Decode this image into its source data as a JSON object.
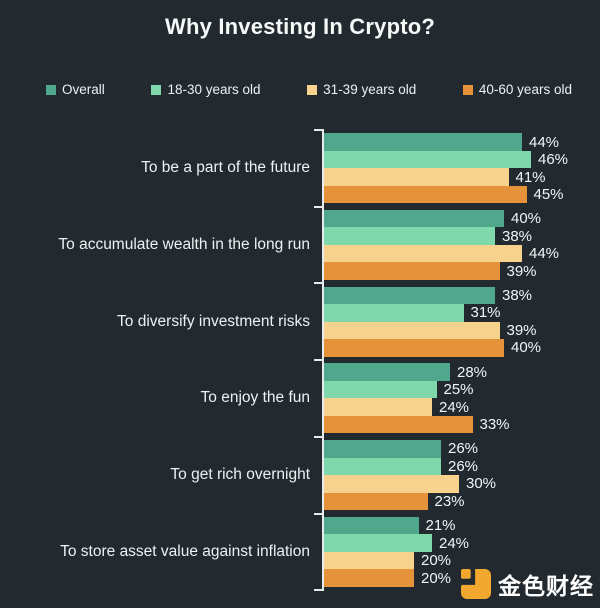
{
  "title": "Why Investing In Crypto?",
  "chart_data": {
    "type": "bar",
    "orientation": "horizontal",
    "title": "Why Investing In Crypto?",
    "categories": [
      "To be a part of the future",
      "To accumulate wealth in the long run",
      "To diversify investment risks",
      "To enjoy the fun",
      "To get rich overnight",
      "To store asset value against inflation"
    ],
    "series": [
      {
        "name": "Overall",
        "color": "#4fa78c",
        "values": [
          44,
          40,
          38,
          28,
          26,
          21
        ]
      },
      {
        "name": "18-30 years old",
        "color": "#7fd7ac",
        "values": [
          46,
          38,
          31,
          25,
          26,
          24
        ]
      },
      {
        "name": "31-39 years old",
        "color": "#f7d28c",
        "values": [
          41,
          44,
          39,
          24,
          30,
          20
        ]
      },
      {
        "name": "40-60 years old",
        "color": "#e5923a",
        "values": [
          45,
          39,
          40,
          33,
          23,
          20
        ]
      }
    ],
    "value_suffix": "%",
    "xlim": [
      0,
      50
    ],
    "grid": false,
    "legend_position": "top",
    "background_color": "#222a30",
    "axis_color": "#e6eaea"
  },
  "watermark": {
    "text": "金色财经",
    "logo_color": "#f2a72e"
  }
}
